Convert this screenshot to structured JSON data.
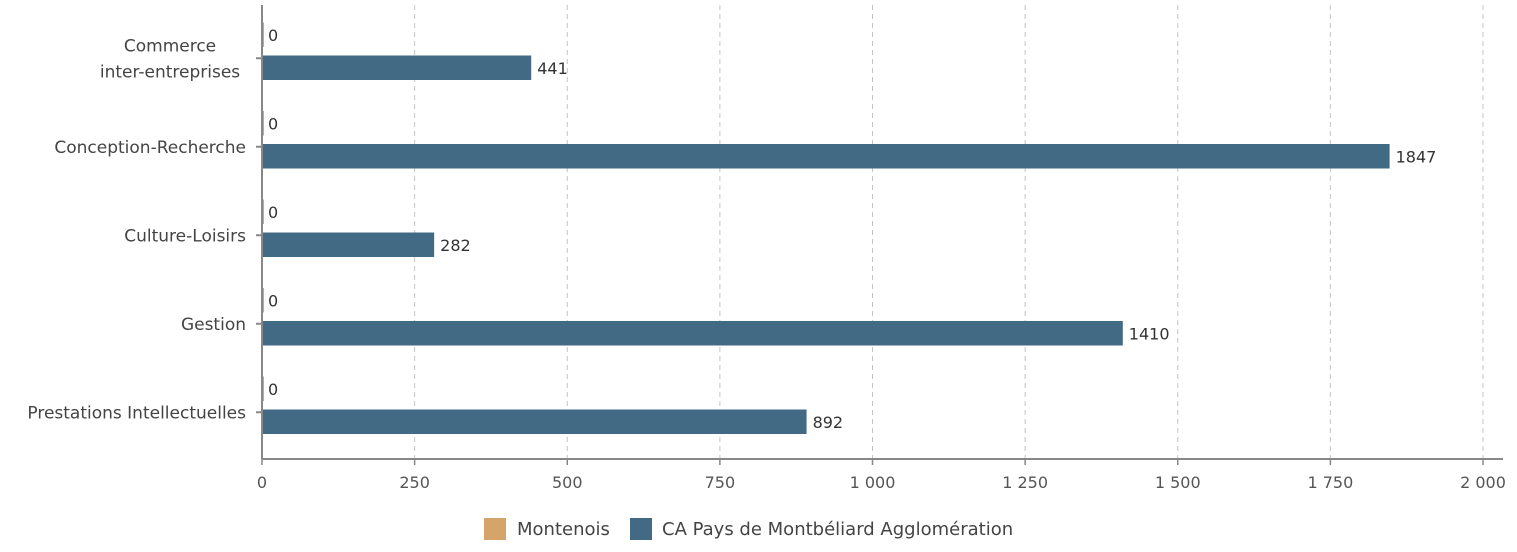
{
  "chart_data": {
    "type": "bar",
    "orientation": "horizontal",
    "categories": [
      [
        "Commerce",
        "inter-entreprises"
      ],
      [
        "Conception-Recherche"
      ],
      [
        "Culture-Loisirs"
      ],
      [
        "Gestion"
      ],
      [
        "Prestations Intellectuelles"
      ]
    ],
    "series": [
      {
        "name": "Montenois",
        "color": "#d4a46a",
        "values": [
          0,
          0,
          0,
          0,
          0
        ]
      },
      {
        "name": "CA Pays de Montbéliard Agglomération",
        "color": "#436a84",
        "values": [
          441,
          1847,
          282,
          1410,
          892
        ]
      }
    ],
    "xlim": [
      0,
      2000
    ],
    "ticks": [
      0,
      250,
      500,
      750,
      1000,
      1250,
      1500,
      1750,
      2000
    ],
    "tick_labels": [
      "0",
      "250",
      "500",
      "750",
      "1 000",
      "1 250",
      "1 500",
      "1 750",
      "2 000"
    ],
    "grid": "vertical dashed",
    "legend_position": "bottom-center",
    "title": "",
    "xlabel": "",
    "ylabel": ""
  }
}
